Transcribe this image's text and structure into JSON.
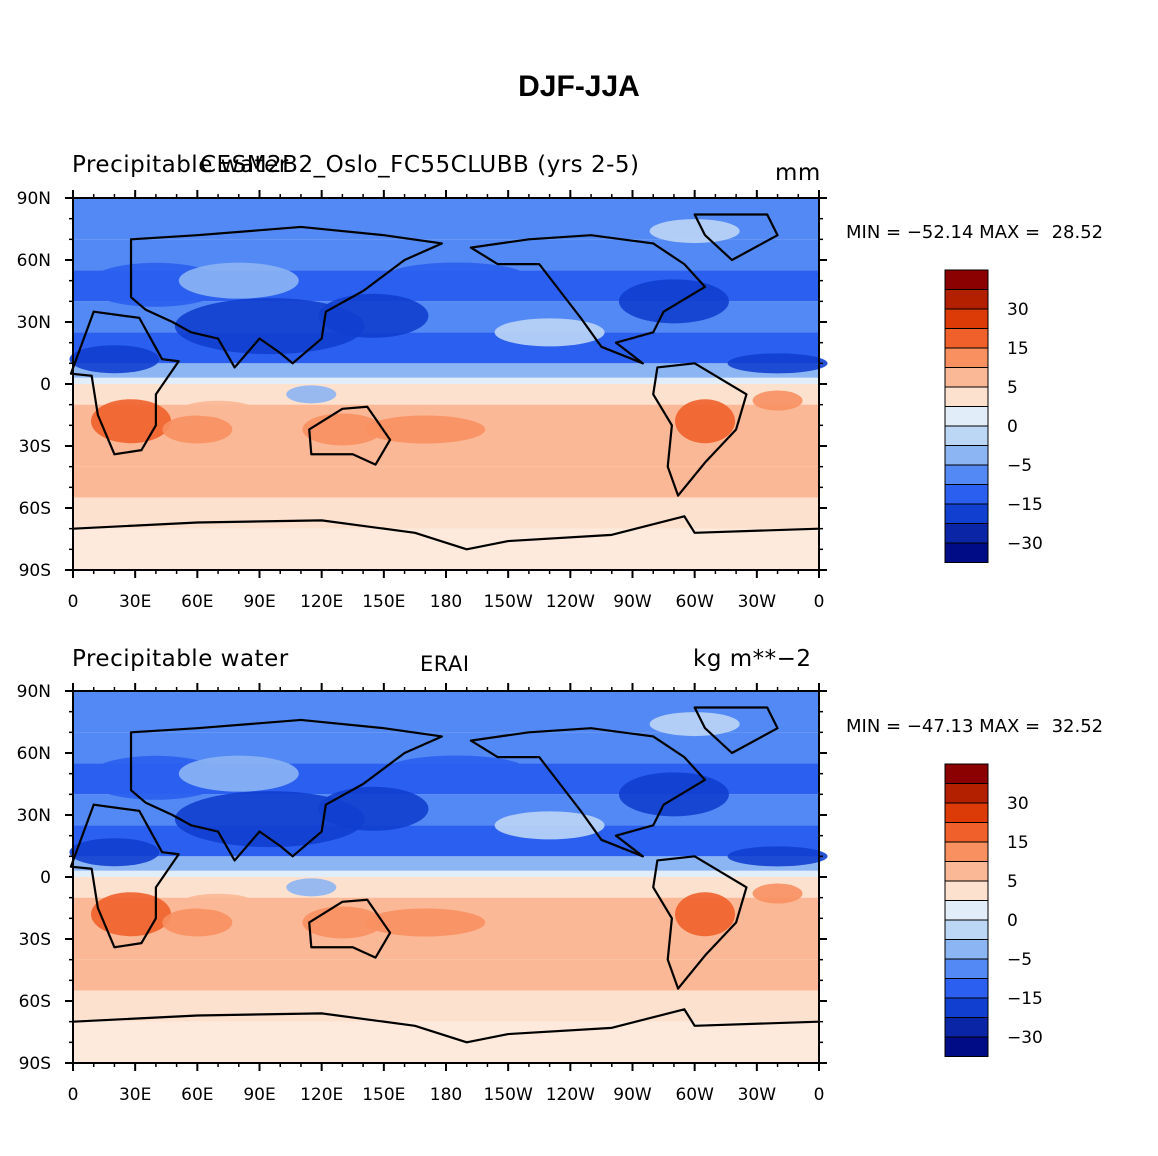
{
  "title": "DJF-JJA",
  "panels": [
    {
      "left_title": "Precipitable water",
      "center_title": "CESM2B2_Oslo_FC55CLUBB (yrs 2-5)",
      "units": "mm",
      "min_max": "MIN = −52.14 MAX =  28.52"
    },
    {
      "left_title": "Precipitable water",
      "center_title": "ERAI",
      "units": "kg m**−2",
      "min_max": "MIN = −47.13 MAX =  32.52"
    }
  ],
  "lat_labels": [
    "90N",
    "60N",
    "30N",
    "0",
    "30S",
    "60S",
    "90S"
  ],
  "lon_labels": [
    "0",
    "30E",
    "60E",
    "90E",
    "120E",
    "150E",
    "180",
    "150W",
    "120W",
    "90W",
    "60W",
    "30W",
    "0"
  ],
  "colorbar": {
    "labels": [
      "30",
      "15",
      "5",
      "0",
      "−5",
      "−15",
      "−30"
    ],
    "colors": [
      "#8b0000",
      "#b22000",
      "#dc3a06",
      "#f0602a",
      "#f89060",
      "#fbb896",
      "#fde1cf",
      "#e1edf9",
      "#bcd6f6",
      "#8cb5f3",
      "#5389f4",
      "#2a5ff0",
      "#113fcf",
      "#0a26a6",
      "#000c85"
    ]
  },
  "colors": {
    "ocean_blue": "#5a88f0",
    "deep_blue": "#1b3fd0",
    "warm": "#fbc3a6",
    "hot": "#e8522a"
  }
}
